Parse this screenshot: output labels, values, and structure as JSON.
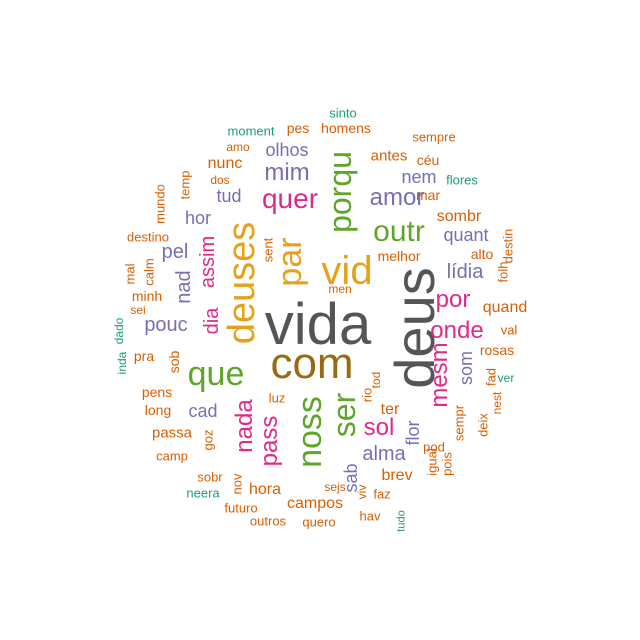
{
  "palette": {
    "dark_gray": "#555555",
    "brown": "#996a12",
    "gold": "#e6a11a",
    "green": "#5fa52a",
    "magenta": "#e0298a",
    "purple": "#7570b3",
    "orange": "#d95f02",
    "teal": "#1b9e77"
  },
  "words": [
    {
      "text": "vida",
      "color": "dark_gray"
    },
    {
      "text": "deus",
      "color": "dark_gray"
    },
    {
      "text": "com",
      "color": "brown"
    },
    {
      "text": "deuses",
      "color": "gold"
    },
    {
      "text": "vid",
      "color": "gold"
    },
    {
      "text": "par",
      "color": "gold"
    },
    {
      "text": "porqu",
      "color": "green"
    },
    {
      "text": "quer",
      "color": "magenta"
    },
    {
      "text": "que",
      "color": "green"
    },
    {
      "text": "noss",
      "color": "green"
    },
    {
      "text": "ser",
      "color": "green"
    },
    {
      "text": "outr",
      "color": "green"
    },
    {
      "text": "mim",
      "color": "purple"
    },
    {
      "text": "amor",
      "color": "purple"
    },
    {
      "text": "por",
      "color": "magenta"
    },
    {
      "text": "onde",
      "color": "magenta"
    },
    {
      "text": "mesm",
      "color": "magenta"
    },
    {
      "text": "nada",
      "color": "magenta"
    },
    {
      "text": "pass",
      "color": "magenta"
    },
    {
      "text": "sol",
      "color": "magenta"
    },
    {
      "text": "dia",
      "color": "magenta"
    },
    {
      "text": "assim",
      "color": "magenta"
    },
    {
      "text": "nad",
      "color": "purple"
    },
    {
      "text": "pel",
      "color": "purple"
    },
    {
      "text": "pouc",
      "color": "purple"
    },
    {
      "text": "lídia",
      "color": "purple"
    },
    {
      "text": "alma",
      "color": "purple"
    },
    {
      "text": "olhos",
      "color": "purple"
    },
    {
      "text": "tud",
      "color": "purple"
    },
    {
      "text": "hor",
      "color": "purple"
    },
    {
      "text": "quant",
      "color": "purple"
    },
    {
      "text": "nem",
      "color": "purple"
    },
    {
      "text": "cad",
      "color": "purple"
    },
    {
      "text": "sab",
      "color": "purple"
    },
    {
      "text": "som",
      "color": "purple"
    },
    {
      "text": "flor",
      "color": "purple"
    },
    {
      "text": "sombr",
      "color": "orange"
    },
    {
      "text": "nunc",
      "color": "orange"
    },
    {
      "text": "ter",
      "color": "orange"
    },
    {
      "text": "brev",
      "color": "orange"
    },
    {
      "text": "antes",
      "color": "orange"
    },
    {
      "text": "céu",
      "color": "orange"
    },
    {
      "text": "mar",
      "color": "orange"
    },
    {
      "text": "melhor",
      "color": "orange"
    },
    {
      "text": "quand",
      "color": "orange"
    },
    {
      "text": "rosas",
      "color": "orange"
    },
    {
      "text": "hora",
      "color": "orange"
    },
    {
      "text": "campos",
      "color": "orange"
    },
    {
      "text": "sejs",
      "color": "orange"
    },
    {
      "text": "passa",
      "color": "orange"
    },
    {
      "text": "long",
      "color": "orange"
    },
    {
      "text": "pens",
      "color": "orange"
    },
    {
      "text": "pra",
      "color": "orange"
    },
    {
      "text": "sob",
      "color": "orange"
    },
    {
      "text": "minh",
      "color": "orange"
    },
    {
      "text": "sei",
      "color": "orange"
    },
    {
      "text": "calm",
      "color": "orange"
    },
    {
      "text": "mal",
      "color": "orange"
    },
    {
      "text": "destino",
      "color": "orange"
    },
    {
      "text": "mundo",
      "color": "orange"
    },
    {
      "text": "temp",
      "color": "orange"
    },
    {
      "text": "dos",
      "color": "orange"
    },
    {
      "text": "amo",
      "color": "orange"
    },
    {
      "text": "pes",
      "color": "orange"
    },
    {
      "text": "homens",
      "color": "orange"
    },
    {
      "text": "sempre",
      "color": "orange"
    },
    {
      "text": "sent",
      "color": "orange"
    },
    {
      "text": "men",
      "color": "orange"
    },
    {
      "text": "alto",
      "color": "orange"
    },
    {
      "text": "destin",
      "color": "orange"
    },
    {
      "text": "folh",
      "color": "orange"
    },
    {
      "text": "val",
      "color": "orange"
    },
    {
      "text": "fad",
      "color": "orange"
    },
    {
      "text": "nest",
      "color": "orange"
    },
    {
      "text": "deix",
      "color": "orange"
    },
    {
      "text": "sempr",
      "color": "orange"
    },
    {
      "text": "pois",
      "color": "orange"
    },
    {
      "text": "igual",
      "color": "orange"
    },
    {
      "text": "pod",
      "color": "orange"
    },
    {
      "text": "faz",
      "color": "orange"
    },
    {
      "text": "hav",
      "color": "orange"
    },
    {
      "text": "quero",
      "color": "orange"
    },
    {
      "text": "outros",
      "color": "orange"
    },
    {
      "text": "futuro",
      "color": "orange"
    },
    {
      "text": "sobr",
      "color": "orange"
    },
    {
      "text": "camp",
      "color": "orange"
    },
    {
      "text": "goz",
      "color": "orange"
    },
    {
      "text": "nov",
      "color": "orange"
    },
    {
      "text": "viv",
      "color": "orange"
    },
    {
      "text": "luz",
      "color": "orange"
    },
    {
      "text": "rio",
      "color": "orange"
    },
    {
      "text": "tod",
      "color": "orange"
    },
    {
      "text": "sinto",
      "color": "teal"
    },
    {
      "text": "moment",
      "color": "teal"
    },
    {
      "text": "flores",
      "color": "teal"
    },
    {
      "text": "dado",
      "color": "teal"
    },
    {
      "text": "inda",
      "color": "teal"
    },
    {
      "text": "neera",
      "color": "teal"
    },
    {
      "text": "tudo",
      "color": "teal"
    },
    {
      "text": "ver",
      "color": "teal"
    }
  ]
}
